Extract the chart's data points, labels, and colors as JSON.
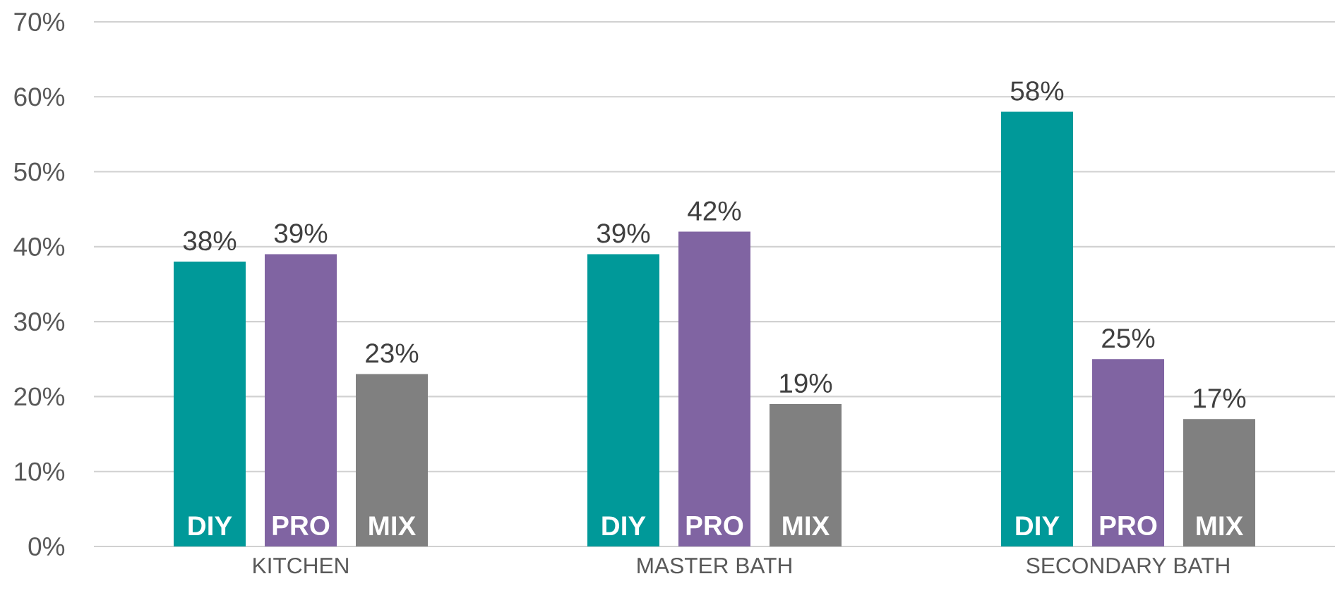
{
  "chart_data": {
    "type": "bar",
    "categories": [
      "KITCHEN",
      "MASTER BATH",
      "SECONDARY BATH"
    ],
    "series": [
      {
        "name": "DIY",
        "color": "#009999",
        "values": [
          38,
          39,
          58
        ],
        "value_labels": [
          "38%",
          "39%",
          "58%"
        ]
      },
      {
        "name": "PRO",
        "color": "#8064a2",
        "values": [
          39,
          42,
          25
        ],
        "value_labels": [
          "39%",
          "42%",
          "25%"
        ]
      },
      {
        "name": "MIX",
        "color": "#808080",
        "values": [
          23,
          19,
          17
        ],
        "value_labels": [
          "23%",
          "19%",
          "17%"
        ]
      }
    ],
    "ylim": [
      0,
      70
    ],
    "yticks": [
      {
        "value": 0,
        "label": "0%"
      },
      {
        "value": 10,
        "label": "10%"
      },
      {
        "value": 20,
        "label": "20%"
      },
      {
        "value": 30,
        "label": "30%"
      },
      {
        "value": 40,
        "label": "40%"
      },
      {
        "value": 50,
        "label": "50%"
      },
      {
        "value": 60,
        "label": "60%"
      },
      {
        "value": 70,
        "label": "70%"
      }
    ],
    "grid": "y"
  }
}
